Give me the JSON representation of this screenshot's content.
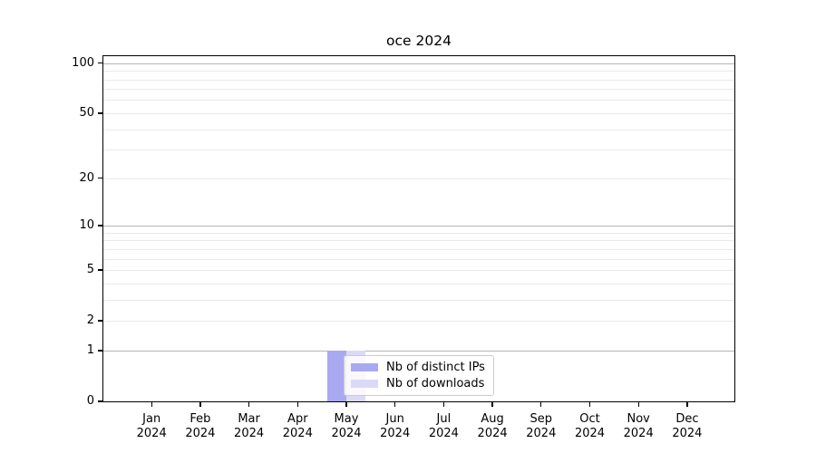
{
  "chart_data": {
    "type": "bar",
    "title": "oce 2024",
    "categories": [
      "Jan 2024",
      "Feb 2024",
      "Mar 2024",
      "Apr 2024",
      "May 2024",
      "Jun 2024",
      "Jul 2024",
      "Aug 2024",
      "Sep 2024",
      "Oct 2024",
      "Nov 2024",
      "Dec 2024"
    ],
    "x_tick_lines": [
      [
        "Jan",
        "2024"
      ],
      [
        "Feb",
        "2024"
      ],
      [
        "Mar",
        "2024"
      ],
      [
        "Apr",
        "2024"
      ],
      [
        "May",
        "2024"
      ],
      [
        "Jun",
        "2024"
      ],
      [
        "Jul",
        "2024"
      ],
      [
        "Aug",
        "2024"
      ],
      [
        "Sep",
        "2024"
      ],
      [
        "Oct",
        "2024"
      ],
      [
        "Nov",
        "2024"
      ],
      [
        "Dec",
        "2024"
      ]
    ],
    "series": [
      {
        "name": "Nb of distinct IPs",
        "color": "#a9a9f1",
        "values": [
          0,
          0,
          0,
          0,
          1,
          0,
          0,
          0,
          0,
          0,
          0,
          0
        ]
      },
      {
        "name": "Nb of downloads",
        "color": "#dadaf6",
        "values": [
          0,
          0,
          0,
          0,
          1,
          0,
          0,
          0,
          0,
          0,
          0,
          0
        ]
      }
    ],
    "xlabel": "",
    "ylabel": "",
    "y_axis": {
      "scale": "log1p",
      "lim": [
        0,
        110
      ],
      "tick_values": [
        0,
        1,
        2,
        5,
        10,
        20,
        50,
        100
      ],
      "tick_labels": [
        "0",
        "1",
        "2",
        "5",
        "10",
        "20",
        "50",
        "100"
      ],
      "gridlines_dark": [
        1,
        10,
        100
      ],
      "gridlines_light": [
        2,
        3,
        4,
        5,
        6,
        7,
        8,
        9,
        20,
        30,
        40,
        50,
        60,
        70,
        80,
        90
      ]
    },
    "legend": {
      "position": "lower center inside plot",
      "frame": true
    },
    "grid": "horizontal only",
    "colors": {
      "grid_dark": "#b5b5b5",
      "grid_light": "#e9e9e9",
      "spine": "#000000",
      "text": "#000000",
      "background": "#ffffff"
    }
  }
}
